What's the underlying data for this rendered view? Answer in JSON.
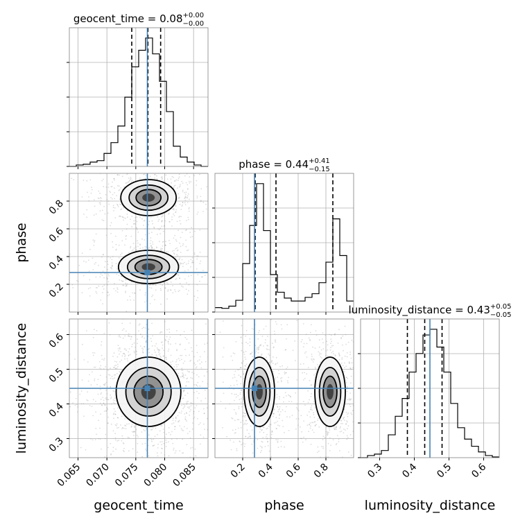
{
  "chart_data": {
    "type": "corner",
    "parameters": [
      "geocent_time",
      "phase",
      "luminosity_distance"
    ],
    "truths": [
      0.077,
      0.285,
      0.445
    ],
    "colors": {
      "truth": "#4682b4",
      "hist": "#000000",
      "quantile": "#000000",
      "scatter": "#9a9a9a"
    },
    "grid": true,
    "titles": {
      "geocent_time": {
        "name": "geocent_time",
        "value": "0.08",
        "plus": "+0.00",
        "minus": "−0.00"
      },
      "phase": {
        "name": "phase",
        "value": "0.44",
        "plus": "+0.41",
        "minus": "−0.15"
      },
      "luminosity_distance": {
        "name": "luminosity_distance",
        "value": "0.43",
        "plus": "+0.05",
        "minus": "−0.05"
      }
    },
    "axes": {
      "geocent_time": {
        "range": [
          0.0635,
          0.0875
        ],
        "ticks": [
          "0.065",
          "0.070",
          "0.075",
          "0.080",
          "0.085"
        ],
        "label": "geocent_time"
      },
      "phase": {
        "range": [
          0.0,
          1.0
        ],
        "ticks": [
          "0.2",
          "0.4",
          "0.6",
          "0.8"
        ],
        "label": "phase"
      },
      "luminosity_distance": {
        "range": [
          0.245,
          0.645
        ],
        "ticks": [
          "0.3",
          "0.4",
          "0.5",
          "0.6"
        ],
        "label": "luminosity_distance"
      }
    },
    "quantiles": {
      "geocent_time": [
        0.0743,
        0.0771,
        0.0793
      ],
      "phase": [
        0.29,
        0.44,
        0.85
      ],
      "luminosity_distance": [
        0.38,
        0.43,
        0.48
      ]
    },
    "histograms": {
      "geocent_time": {
        "edges": [
          0.0635,
          0.0647,
          0.0659,
          0.0671,
          0.0683,
          0.0695,
          0.0707,
          0.0719,
          0.0731,
          0.0743,
          0.0755,
          0.0767,
          0.0779,
          0.0791,
          0.0803,
          0.0815,
          0.0827,
          0.0839,
          0.0851,
          0.0863,
          0.0875
        ],
        "counts": [
          0,
          2,
          3,
          6,
          8,
          18,
          33,
          56,
          96,
          138,
          161,
          178,
          156,
          118,
          76,
          28,
          13,
          6,
          2,
          0
        ]
      },
      "phase": {
        "edges": [
          0.0,
          0.05,
          0.1,
          0.15,
          0.2,
          0.25,
          0.3,
          0.35,
          0.4,
          0.45,
          0.5,
          0.55,
          0.6,
          0.65,
          0.7,
          0.75,
          0.8,
          0.85,
          0.9,
          0.95,
          1.0
        ],
        "counts": [
          6,
          5,
          8,
          16,
          66,
          118,
          175,
          111,
          51,
          27,
          19,
          15,
          15,
          20,
          25,
          40,
          68,
          127,
          77,
          15
        ]
      },
      "luminosity_distance": {
        "edges": [
          0.245,
          0.265,
          0.285,
          0.305,
          0.325,
          0.345,
          0.365,
          0.385,
          0.405,
          0.425,
          0.445,
          0.465,
          0.485,
          0.505,
          0.525,
          0.545,
          0.565,
          0.585,
          0.605,
          0.625,
          0.645
        ],
        "counts": [
          0,
          3,
          5,
          10,
          32,
          58,
          83,
          120,
          146,
          172,
          180,
          155,
          120,
          76,
          42,
          26,
          16,
          8,
          3,
          1
        ]
      }
    },
    "density_modes": {
      "phase_vs_geocent_time": [
        {
          "x": 0.0772,
          "y": 0.325,
          "sx": 0.0026,
          "sy": 0.06
        },
        {
          "x": 0.0772,
          "y": 0.825,
          "sx": 0.0024,
          "sy": 0.065
        }
      ],
      "luminosity_distance_vs_geocent_time": [
        {
          "x": 0.0772,
          "y": 0.435,
          "sx": 0.0028,
          "sy": 0.05
        }
      ],
      "luminosity_distance_vs_phase": [
        {
          "x": 0.32,
          "y": 0.435,
          "sx": 0.055,
          "sy": 0.05
        },
        {
          "x": 0.83,
          "y": 0.435,
          "sx": 0.055,
          "sy": 0.05
        }
      ]
    }
  }
}
